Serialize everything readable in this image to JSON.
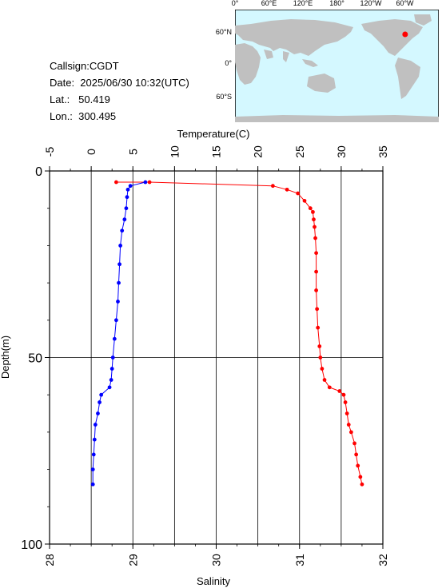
{
  "info": {
    "callsign": "Callsign:CGDT",
    "date": "Date:  2025/06/30 10:32(UTC)",
    "lat": "Lat.:   50.419",
    "lon": "Lon.:  300.495"
  },
  "map": {
    "top_labels": [
      "0°",
      "60°E",
      "120°E",
      "180°",
      "120°W",
      "60°W"
    ],
    "left_labels": [
      "60°N",
      "0°",
      "60°S"
    ],
    "ocean_color": "#d4f8ff",
    "land_color": "#c0c0c0",
    "station_color": "#ff0000",
    "station_lon": 300.495,
    "station_lat": 50.419
  },
  "chart_data": {
    "type": "line",
    "grid": true,
    "ylabel": "Depth(m)",
    "ylim": [
      100,
      0
    ],
    "y_ticks": [
      "0",
      "50",
      "100"
    ],
    "top_axis": {
      "label": "Temperature(C)",
      "range": [
        -5,
        35
      ],
      "ticks": [
        "-5",
        "0",
        "5",
        "10",
        "15",
        "20",
        "25",
        "30",
        "35"
      ]
    },
    "bottom_axis": {
      "label": "Salinity",
      "range": [
        28,
        32
      ],
      "ticks": [
        "28",
        "29",
        "30",
        "31",
        "32"
      ]
    },
    "series": [
      {
        "axis": "top",
        "color": "#ff0000",
        "points": [
          [
            3.0,
            3
          ],
          [
            7.0,
            3
          ],
          [
            21.8,
            4
          ],
          [
            23.5,
            5
          ],
          [
            24.8,
            6
          ],
          [
            25.6,
            8
          ],
          [
            26.3,
            10
          ],
          [
            26.6,
            11
          ],
          [
            26.7,
            13
          ],
          [
            26.8,
            15
          ],
          [
            26.9,
            18
          ],
          [
            27.0,
            22
          ],
          [
            27.0,
            27
          ],
          [
            27.0,
            32
          ],
          [
            27.1,
            37
          ],
          [
            27.2,
            42
          ],
          [
            27.4,
            47
          ],
          [
            27.5,
            50
          ],
          [
            27.7,
            53
          ],
          [
            28.0,
            56
          ],
          [
            28.6,
            58
          ],
          [
            29.8,
            59
          ],
          [
            30.3,
            60
          ],
          [
            30.5,
            62
          ],
          [
            30.7,
            65
          ],
          [
            30.9,
            68
          ],
          [
            31.2,
            70
          ],
          [
            31.6,
            73
          ],
          [
            31.8,
            76
          ],
          [
            32.0,
            79
          ],
          [
            32.3,
            82
          ],
          [
            32.5,
            84
          ]
        ]
      },
      {
        "axis": "bottom",
        "color": "#0000ff",
        "points": [
          [
            29.15,
            3
          ],
          [
            28.97,
            4
          ],
          [
            28.94,
            5
          ],
          [
            28.93,
            7
          ],
          [
            28.92,
            10
          ],
          [
            28.9,
            13
          ],
          [
            28.87,
            16
          ],
          [
            28.85,
            20
          ],
          [
            28.84,
            25
          ],
          [
            28.83,
            30
          ],
          [
            28.82,
            35
          ],
          [
            28.8,
            40
          ],
          [
            28.78,
            45
          ],
          [
            28.76,
            50
          ],
          [
            28.75,
            53
          ],
          [
            28.74,
            56
          ],
          [
            28.72,
            58
          ],
          [
            28.62,
            60
          ],
          [
            28.6,
            62
          ],
          [
            28.58,
            65
          ],
          [
            28.55,
            68
          ],
          [
            28.54,
            72
          ],
          [
            28.53,
            76
          ],
          [
            28.52,
            80
          ],
          [
            28.52,
            84
          ]
        ]
      }
    ]
  }
}
